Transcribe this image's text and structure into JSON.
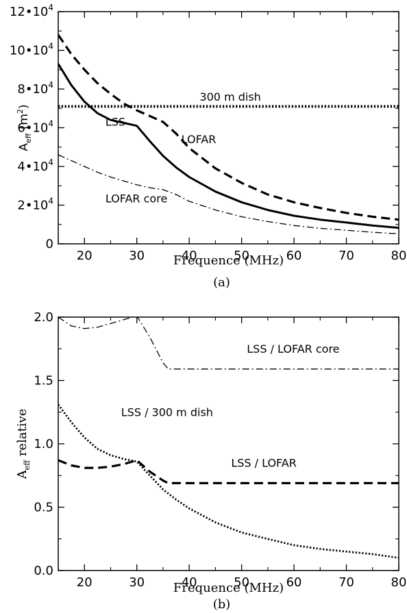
{
  "chart_data": [
    {
      "id": "a",
      "type": "line",
      "caption": "(a)",
      "xlabel": "Frequence (MHz)",
      "ylabel": {
        "main": "A",
        "sub": "eff",
        "rest": " (m",
        "sup": "2",
        "close": ")"
      },
      "xlim": [
        15,
        80
      ],
      "ylim": [
        0,
        120000
      ],
      "x_ticks": [
        20,
        30,
        40,
        50,
        60,
        70,
        80
      ],
      "y_ticks": [
        {
          "value": 0,
          "mantissa": "0",
          "exp": ""
        },
        {
          "value": 20000,
          "mantissa": "2•10",
          "exp": "4"
        },
        {
          "value": 40000,
          "mantissa": "4•10",
          "exp": "4"
        },
        {
          "value": 60000,
          "mantissa": "6•10",
          "exp": "4"
        },
        {
          "value": 80000,
          "mantissa": "8•10",
          "exp": "4"
        },
        {
          "value": 100000,
          "mantissa": "10•10",
          "exp": "4"
        },
        {
          "value": 120000,
          "mantissa": "12•10",
          "exp": "4"
        }
      ],
      "series": [
        {
          "name": "LSS",
          "style": "solid",
          "x": [
            15,
            17.5,
            20,
            22.5,
            25,
            27.5,
            30,
            32.5,
            35,
            37.5,
            40,
            45,
            50,
            55,
            60,
            65,
            70,
            75,
            80
          ],
          "y": [
            93000,
            82000,
            73500,
            67500,
            64000,
            62500,
            61000,
            53000,
            45500,
            39500,
            34500,
            27000,
            21500,
            17500,
            14500,
            12500,
            11000,
            9500,
            8300
          ]
        },
        {
          "name": "LOFAR",
          "style": "dashed",
          "x": [
            15,
            17.5,
            20,
            22.5,
            25,
            27.5,
            30,
            32.5,
            35,
            37.5,
            40,
            45,
            50,
            55,
            60,
            65,
            70,
            75,
            80
          ],
          "y": [
            108000,
            98000,
            90000,
            83000,
            77500,
            72500,
            69000,
            66000,
            63000,
            57000,
            49500,
            39000,
            31500,
            25500,
            21500,
            18500,
            16000,
            14000,
            12500
          ]
        },
        {
          "name": "300 m dish",
          "style": "dotted",
          "x": [
            15,
            80
          ],
          "y": [
            71000,
            71000
          ]
        },
        {
          "name": "LOFAR core",
          "style": "dashdot",
          "x": [
            15,
            17.5,
            20,
            22.5,
            25,
            27.5,
            30,
            32.5,
            35,
            37.5,
            40,
            45,
            50,
            55,
            60,
            65,
            70,
            75,
            80
          ],
          "y": [
            46000,
            43000,
            40000,
            37000,
            34500,
            32500,
            30500,
            29000,
            28000,
            25500,
            22000,
            17500,
            14000,
            11500,
            9500,
            8000,
            7000,
            6000,
            5200
          ]
        }
      ],
      "annotations": [
        {
          "text": "300 m dish",
          "x": 42,
          "y": 74000
        },
        {
          "text": "LSS",
          "x": 24,
          "y": 61000
        },
        {
          "text": "LOFAR",
          "x": 38.5,
          "y": 52000
        },
        {
          "text": "LOFAR core",
          "x": 24,
          "y": 21500
        }
      ]
    },
    {
      "id": "b",
      "type": "line",
      "caption": "(b)",
      "xlabel": "Frequence (MHz)",
      "ylabel": {
        "main": "A",
        "sub": "eff",
        "rest": " relative"
      },
      "xlim": [
        15,
        80
      ],
      "ylim": [
        0,
        2.0
      ],
      "x_ticks": [
        20,
        30,
        40,
        50,
        60,
        70,
        80
      ],
      "y_ticks": [
        {
          "value": 0.0,
          "label": "0.0"
        },
        {
          "value": 0.5,
          "label": "0.5"
        },
        {
          "value": 1.0,
          "label": "1.0"
        },
        {
          "value": 1.5,
          "label": "1.5"
        },
        {
          "value": 2.0,
          "label": "2.0"
        }
      ],
      "series": [
        {
          "name": "LSS / LOFAR core",
          "style": "dashdot",
          "x": [
            15,
            17.5,
            20,
            22.5,
            25,
            27.5,
            30,
            32.5,
            35,
            36,
            40,
            50,
            60,
            70,
            80
          ],
          "y": [
            2.0,
            1.93,
            1.91,
            1.92,
            1.95,
            1.98,
            2.01,
            1.84,
            1.64,
            1.59,
            1.59,
            1.59,
            1.59,
            1.59,
            1.59
          ]
        },
        {
          "name": "LSS / 300 m dish",
          "style": "dotted",
          "x": [
            15,
            17.5,
            20,
            22.5,
            25,
            27.5,
            30,
            32.5,
            35,
            37.5,
            40,
            45,
            50,
            55,
            60,
            65,
            70,
            75,
            80
          ],
          "y": [
            1.31,
            1.17,
            1.05,
            0.96,
            0.91,
            0.88,
            0.86,
            0.75,
            0.64,
            0.56,
            0.49,
            0.38,
            0.3,
            0.25,
            0.2,
            0.17,
            0.15,
            0.13,
            0.1
          ]
        },
        {
          "name": "LSS / LOFAR",
          "style": "dashed",
          "x": [
            15,
            17.5,
            20,
            22.5,
            25,
            27.5,
            30,
            32.5,
            35,
            36,
            40,
            50,
            60,
            70,
            80
          ],
          "y": [
            0.87,
            0.83,
            0.81,
            0.81,
            0.82,
            0.84,
            0.87,
            0.78,
            0.71,
            0.69,
            0.69,
            0.69,
            0.69,
            0.69,
            0.69
          ]
        }
      ],
      "annotations": [
        {
          "text": "LSS / LOFAR core",
          "x": 51,
          "y": 1.72
        },
        {
          "text": "LSS / 300 m dish",
          "x": 27,
          "y": 1.22
        },
        {
          "text": "LSS / LOFAR",
          "x": 48,
          "y": 0.82
        }
      ]
    }
  ]
}
